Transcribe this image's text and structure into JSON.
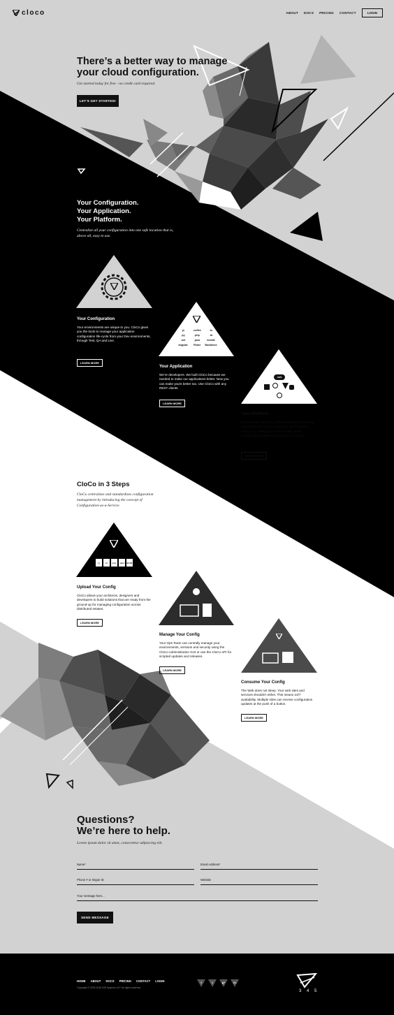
{
  "header": {
    "logo_text": "cloco",
    "nav": [
      "ABOUT",
      "DOCS",
      "PRICING",
      "CONTACT"
    ],
    "login_label": "LOGIN"
  },
  "hero": {
    "title": "There’s a better way to manage your cloud configuration.",
    "subtitle": "Get started today for free - no credit card required.",
    "cta_label": "LET'S GET STARTED!"
  },
  "features": {
    "title_line1": "Your Configuration.",
    "title_line2": "Your Application.",
    "title_line3": "Your Platform.",
    "subtitle": "Centralize all your configuration into one safe location that is, above all, easy to use.",
    "cards": [
      {
        "title": "Your Configuration",
        "desc": "Your environments are unique to you. CloCo gives you the tools to manage your application configuration life-cycle from your Dev environments, through Test, QA and Live.",
        "button": "LEARN MORE"
      },
      {
        "title": "Your Application",
        "desc": "We’re developers. We built CloCo because we needed to make our applications better. Now you can make yours better too. Use CloCo with any REST clients.",
        "button": "LEARN MORE"
      },
      {
        "title": "Your Platform",
        "desc": "CloCo works with many different platforms, scripting languages and coding languages, and supports almost any configuration file formats. Make configuration updates at the push of a button.",
        "button": "LEARN MORE"
      }
    ],
    "languages": [
      ".js",
      ".coffee",
      ".ts",
      ".py",
      ".php",
      ".rb",
      ".net",
      ".java",
      "mobile",
      "Angular",
      "React",
      "Backbone"
    ],
    "platform_badge": "AWS"
  },
  "steps": {
    "title": "CloCo in 3 Steps",
    "subtitle": "CloCo centralizes and standardizes configuration management by introducing the concept of Configuration-as-a-Service.",
    "files": [
      "{ }",
      "</>",
      "json",
      "yaml",
      "BLOB"
    ],
    "cards": [
      {
        "title": "Upload Your Config",
        "desc": "CloCo allows your architects, designers and developers to build solutions that are ready from the ground-up for managing configuration across distributed estates.",
        "button": "LEARN MORE"
      },
      {
        "title": "Manage Your Config",
        "desc": "Your Ops Team can centrally manage your environments, versions and security using the CloCo Administration GUI or use the CloCo API for scripted updates and releases.",
        "button": "LEARN MORE"
      },
      {
        "title": "Consume Your Config",
        "desc": "The Web does not sleep. Your web sites and services shouldn’t either. This means 24/7 availability. Multiple sites can receive configuration updates at the push of a button.",
        "button": "LEARN MORE"
      }
    ]
  },
  "contact": {
    "title_line1": "Questions?",
    "title_line2": "We’re here to help.",
    "subtitle": "Lorem ipsum dolor sit amet, consectetur adipiscing elit.",
    "fields": {
      "name": "Name*",
      "email": "Email Address*",
      "phone": "Phone # or Skype ID",
      "website": "Website",
      "message": "Your message here..."
    },
    "send_label": "SEND MESSAGE"
  },
  "footer": {
    "nav": [
      "HOME",
      "ABOUT",
      "DOCS",
      "PRICING",
      "CONTACT",
      "LOGIN"
    ],
    "copyright": "Copyright © 2015-2016 345 Systems LLP. All rights reserved.",
    "social": [
      "f",
      "t",
      "g+",
      "in"
    ],
    "version_text": "3 4 5"
  },
  "colors": {
    "black": "#000000",
    "light_gray": "#d2d2d2",
    "white": "#ffffff"
  }
}
